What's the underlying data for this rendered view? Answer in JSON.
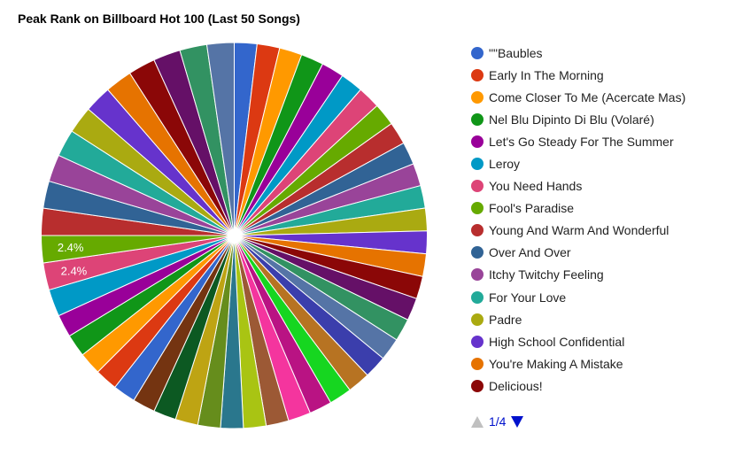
{
  "chart_data": {
    "type": "pie",
    "title": "Peak Rank on Billboard Hot 100 (Last 50 Songs)",
    "total_slices": 50,
    "visible_legend": [
      "\"\"Baubles",
      "Early In The Morning",
      "Come Closer To Me (Acercate Mas)",
      "Nel Blu Dipinto Di Blu (Volaré)",
      "Let's Go Steady For The Summer",
      "Leroy",
      "You Need Hands",
      "Fool's Paradise",
      "Young And Warm And Wonderful",
      "Over And Over",
      "Itchy Twitchy Feeling",
      "For Your Love",
      "Padre",
      "High School Confidential",
      "You're Making A Mistake",
      "Delicious!"
    ],
    "values": [
      2.0,
      2.0,
      2.0,
      2.0,
      2.0,
      2.0,
      2.0,
      2.0,
      2.0,
      2.0,
      2.0,
      2.0,
      2.0,
      2.0,
      2.0,
      2.0,
      2.0,
      2.0,
      2.0,
      2.0,
      2.0,
      2.0,
      2.0,
      2.0,
      2.0,
      2.0,
      2.0,
      2.0,
      2.0,
      2.0,
      2.0,
      2.0,
      2.0,
      2.0,
      2.0,
      2.0,
      2.4,
      2.4,
      2.4,
      2.4,
      2.4,
      2.4,
      2.4,
      2.4,
      2.4,
      2.4,
      2.4,
      2.4,
      2.4,
      2.4
    ],
    "data_labels": [
      {
        "slice": 37,
        "text": "2.4%"
      },
      {
        "slice": 38,
        "text": "2.4%"
      }
    ],
    "colors": [
      "#3366cc",
      "#dc3912",
      "#ff9900",
      "#109618",
      "#990099",
      "#0099c6",
      "#dd4477",
      "#66aa00",
      "#b82e2e",
      "#316395",
      "#994499",
      "#22aa99",
      "#aaaa11",
      "#6633cc",
      "#e67300",
      "#8b0707",
      "#651067",
      "#329262",
      "#5574a6",
      "#3b3eac",
      "#b77322",
      "#16d620",
      "#b91383",
      "#f4359e",
      "#9c5935",
      "#a9c413",
      "#2a778d",
      "#668d1c",
      "#bea413",
      "#0c5922",
      "#743411"
    ],
    "legend_position": "right",
    "pager": "1/4"
  }
}
